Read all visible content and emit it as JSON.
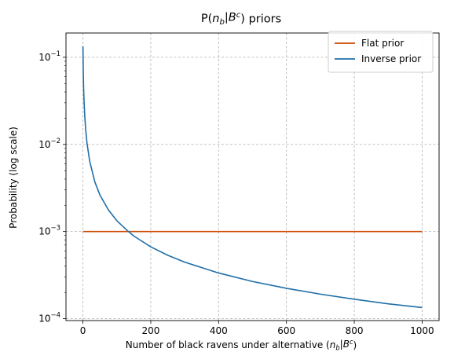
{
  "chart_data": {
    "type": "line",
    "title": "P(n_b|B^c) priors",
    "xlabel": "Number of black ravens under alternative (n_b|B^c)",
    "ylabel": "Probability (log scale)",
    "xlim": [
      -50,
      1050
    ],
    "ylim": [
      9.5e-05,
      0.19
    ],
    "yscale": "log",
    "grid": true,
    "legend_position": "top-right",
    "x_ticks": [
      0,
      200,
      400,
      600,
      800,
      1000
    ],
    "y_ticks": [
      0.0001,
      0.001,
      0.01,
      0.1
    ],
    "y_tick_labels": [
      {
        "base": "10",
        "exp": "−4"
      },
      {
        "base": "10",
        "exp": "−3"
      },
      {
        "base": "10",
        "exp": "−2"
      },
      {
        "base": "10",
        "exp": "−1"
      }
    ],
    "series": [
      {
        "name": "Flat prior",
        "color": "#cc4c02",
        "x": [
          0,
          1000
        ],
        "y": [
          0.001,
          0.001
        ]
      },
      {
        "name": "Inverse prior",
        "color": "#1f6fa8",
        "x": [
          0,
          1,
          2,
          3,
          5,
          8,
          12,
          20,
          35,
          50,
          75,
          100,
          134,
          150,
          200,
          250,
          300,
          400,
          500,
          600,
          700,
          800,
          900,
          1000
        ],
        "y": [
          0.134,
          0.067,
          0.0447,
          0.0335,
          0.0223,
          0.0149,
          0.0103,
          0.0064,
          0.00372,
          0.00263,
          0.00177,
          0.00133,
          0.001,
          0.000888,
          0.000667,
          0.000534,
          0.000445,
          0.000334,
          0.000267,
          0.000223,
          0.000191,
          0.000167,
          0.000148,
          0.000134
        ]
      }
    ]
  }
}
